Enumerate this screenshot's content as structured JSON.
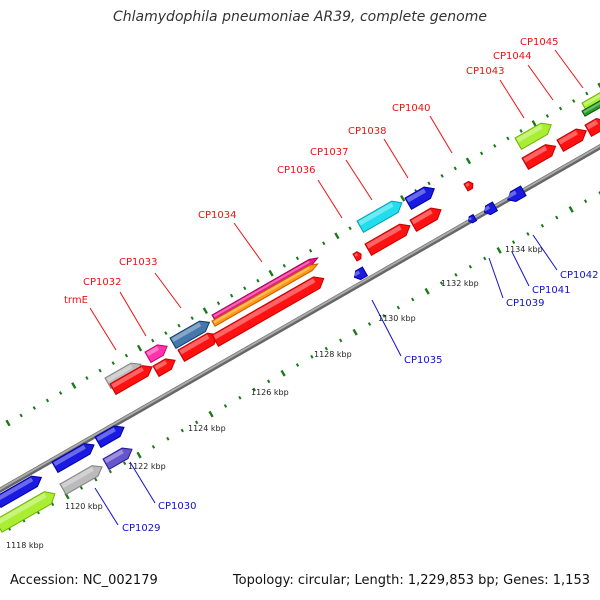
{
  "title": "Chlamydophila pneumoniae AR39, complete genome",
  "accession": "Accession: NC_002179",
  "summary": "Topology: circular; Length: 1,229,853 bp; Genes: 1,153",
  "colors": {
    "backbone": "#888888",
    "tick": "#1a7a1a",
    "forward_label": "#ee1111",
    "reverse_label": "#1111cc",
    "red": "#ff1111",
    "blue": "#1a1ae0",
    "magenta": "#ff33aa",
    "pink": "#e8188c",
    "orange": "#ff9911",
    "steel": "#4477aa",
    "gray": "#bbbbbb",
    "cyan": "#22ddee",
    "lime": "#aaee33",
    "green": "#2a9a2a",
    "purple": "#6655cc"
  },
  "scale_labels": [
    "1118 kbp",
    "1120 kbp",
    "1122 kbp",
    "1124 kbp",
    "1126 kbp",
    "1128 kbp",
    "1130 kbp",
    "1132 kbp",
    "1134 kbp"
  ],
  "forward_labels": [
    "trmE",
    "CP1032",
    "CP1033",
    "CP1034",
    "CP1036",
    "CP1037",
    "CP1038",
    "CP1040",
    "CP1043",
    "CP1044",
    "CP1045"
  ],
  "reverse_labels": [
    "CP1029",
    "CP1030",
    "CP1035",
    "CP1039",
    "CP1041",
    "CP1042"
  ]
}
